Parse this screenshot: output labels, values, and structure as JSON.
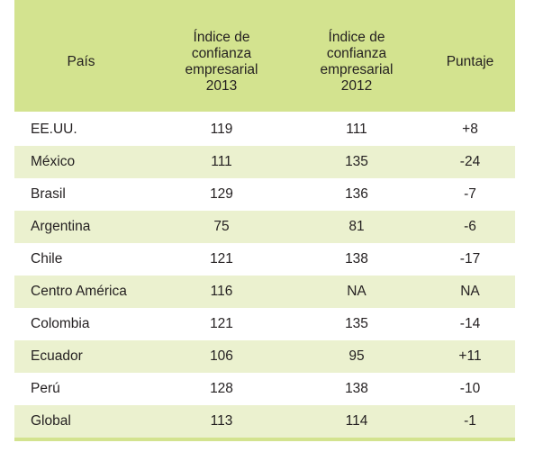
{
  "table": {
    "headers": [
      [
        "País"
      ],
      [
        "Índice de",
        "confianza",
        "empresarial",
        "2013"
      ],
      [
        "Índice de",
        "confianza",
        "empresarial",
        "2012"
      ],
      [
        "Puntaje"
      ]
    ],
    "rows": [
      [
        "EE.UU.",
        "119",
        "111",
        "+8"
      ],
      [
        "México",
        "111",
        "135",
        "-24"
      ],
      [
        "Brasil",
        "129",
        "136",
        "-7"
      ],
      [
        "Argentina",
        "75",
        "81",
        "-6"
      ],
      [
        "Chile",
        "121",
        "138",
        "-17"
      ],
      [
        "Centro América",
        "116",
        "NA",
        "NA"
      ],
      [
        "Colombia",
        "121",
        "135",
        "-14"
      ],
      [
        "Ecuador",
        "106",
        "95",
        "+11"
      ],
      [
        "Perú",
        "128",
        "138",
        "-10"
      ],
      [
        "Global",
        "113",
        "114",
        "-1"
      ]
    ]
  },
  "colors": {
    "header_bg": "#d3e38f",
    "stripe_bg": "#ebf1cf",
    "text": "#231f20"
  }
}
